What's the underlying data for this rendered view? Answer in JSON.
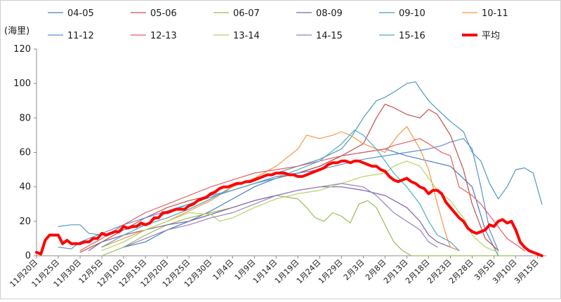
{
  "chart_data": {
    "type": "line",
    "ylabel": "(海里)",
    "ylim": [
      0,
      120
    ],
    "yticks": [
      0,
      20,
      40,
      60,
      80,
      100,
      120
    ],
    "x_tick_labels": [
      "11月20日",
      "11月25日",
      "11月30日",
      "12月5日",
      "12月10日",
      "12月15日",
      "12月20日",
      "12月25日",
      "12月30日",
      "1月4日",
      "1月9日",
      "1月14日",
      "1月19日",
      "1月24日",
      "1月29日",
      "2月3日",
      "2月8日",
      "2月13日",
      "2月18日",
      "2月23日",
      "2月28日",
      "3月5日",
      "3月10日",
      "3月15日"
    ],
    "x_tick_day_index": [
      0,
      5,
      10,
      15,
      20,
      25,
      30,
      35,
      40,
      45,
      50,
      55,
      60,
      65,
      70,
      75,
      80,
      85,
      90,
      95,
      100,
      105,
      110,
      115
    ],
    "x_unit": "days since 11月20日",
    "grid": false,
    "legend_position": "top",
    "series": [
      {
        "name": "04-05",
        "color": "#4a7ebb",
        "width": 1.2,
        "x": [
          20,
          25,
          30,
          35,
          40,
          45,
          50,
          55,
          60,
          65,
          70,
          75,
          80,
          85,
          90,
          95,
          100,
          103,
          106
        ],
        "y": [
          5,
          8,
          15,
          20,
          26,
          33,
          40,
          45,
          48,
          52,
          58,
          60,
          62,
          58,
          55,
          52,
          40,
          15,
          0
        ]
      },
      {
        "name": "05-06",
        "color": "#c0504d",
        "width": 1.2,
        "x": [
          10,
          15,
          20,
          25,
          30,
          35,
          40,
          45,
          50,
          55,
          60,
          65,
          70,
          75,
          78,
          80,
          82,
          85,
          88,
          90,
          92,
          95,
          98,
          100,
          103,
          106
        ],
        "y": [
          2,
          8,
          15,
          22,
          28,
          32,
          35,
          38,
          42,
          45,
          48,
          52,
          58,
          65,
          80,
          88,
          86,
          82,
          80,
          85,
          82,
          70,
          50,
          30,
          10,
          3
        ]
      },
      {
        "name": "06-07",
        "color": "#9bbb59",
        "width": 1.2,
        "x": [
          15,
          20,
          25,
          30,
          35,
          40,
          45,
          50,
          55,
          60,
          62,
          64,
          66,
          68,
          70,
          72,
          74,
          76,
          78,
          80,
          82,
          84,
          86,
          88,
          90,
          92,
          95,
          100,
          105,
          110
        ],
        "y": [
          0,
          5,
          12,
          18,
          22,
          25,
          28,
          32,
          35,
          33,
          28,
          22,
          20,
          25,
          23,
          19,
          30,
          32,
          28,
          18,
          8,
          3,
          0,
          0,
          0,
          0,
          0,
          0,
          0,
          0
        ]
      },
      {
        "name": "08-09",
        "color": "#8064a2",
        "width": 1.2,
        "x": [
          12,
          15,
          20,
          25,
          30,
          35,
          40,
          45,
          50,
          55,
          60,
          65,
          70,
          75,
          80,
          85,
          88,
          90,
          92,
          95,
          97
        ],
        "y": [
          3,
          8,
          12,
          15,
          18,
          20,
          24,
          28,
          32,
          35,
          38,
          40,
          40,
          38,
          35,
          28,
          20,
          12,
          8,
          5,
          3
        ]
      },
      {
        "name": "09-10",
        "color": "#4f9bb7",
        "width": 1.2,
        "x": [
          5,
          8,
          10,
          12,
          15,
          20,
          25,
          30,
          35,
          40,
          45,
          50,
          55,
          60,
          65,
          70,
          72,
          75,
          78,
          80,
          82,
          85,
          87,
          88,
          90,
          92,
          95,
          98,
          100,
          102,
          104,
          106,
          108,
          110,
          112,
          114,
          116
        ],
        "y": [
          17,
          18,
          18,
          13,
          12,
          15,
          18,
          22,
          27,
          33,
          40,
          45,
          48,
          52,
          56,
          62,
          68,
          80,
          90,
          92,
          95,
          100,
          101,
          97,
          90,
          85,
          78,
          72,
          60,
          55,
          42,
          33,
          40,
          50,
          51,
          48,
          30
        ]
      },
      {
        "name": "10-11",
        "color": "#f79646",
        "width": 1.2,
        "x": [
          15,
          20,
          25,
          30,
          35,
          40,
          45,
          50,
          55,
          60,
          62,
          65,
          68,
          70,
          72,
          75,
          78,
          80,
          83,
          85,
          88,
          90,
          92,
          94,
          95,
          97
        ],
        "y": [
          5,
          10,
          15,
          20,
          26,
          32,
          40,
          45,
          52,
          62,
          70,
          68,
          70,
          72,
          70,
          65,
          62,
          60,
          70,
          75,
          62,
          50,
          30,
          12,
          5,
          3
        ]
      },
      {
        "name": "11-12",
        "color": "#5b8fd4",
        "width": 1.2,
        "x": [
          5,
          8,
          10,
          12,
          15,
          20,
          25,
          30,
          35,
          40,
          45,
          50,
          55,
          60,
          65,
          70,
          75,
          80,
          85,
          90,
          93,
          95,
          98,
          100,
          102,
          104,
          106
        ],
        "y": [
          5,
          4,
          8,
          10,
          13,
          18,
          22,
          26,
          30,
          34,
          38,
          42,
          46,
          48,
          50,
          53,
          56,
          58,
          60,
          62,
          64,
          66,
          68,
          62,
          40,
          15,
          3
        ]
      },
      {
        "name": "12-13",
        "color": "#e06060",
        "width": 1.2,
        "x": [
          10,
          15,
          20,
          25,
          30,
          35,
          40,
          45,
          50,
          55,
          60,
          65,
          70,
          75,
          80,
          82,
          85,
          88,
          90,
          93,
          95,
          97,
          100,
          102,
          105,
          108,
          112
        ],
        "y": [
          3,
          10,
          18,
          25,
          30,
          35,
          40,
          44,
          48,
          50,
          52,
          55,
          58,
          60,
          62,
          64,
          66,
          68,
          65,
          60,
          58,
          40,
          35,
          30,
          20,
          10,
          3
        ]
      },
      {
        "name": "13-14",
        "color": "#b5d466",
        "width": 1.2,
        "x": [
          15,
          20,
          25,
          30,
          35,
          40,
          42,
          45,
          50,
          55,
          60,
          65,
          70,
          75,
          80,
          82,
          85,
          88,
          90,
          92,
          95,
          98,
          100,
          103,
          106
        ],
        "y": [
          3,
          8,
          15,
          20,
          25,
          24,
          20,
          22,
          28,
          33,
          36,
          38,
          42,
          46,
          48,
          52,
          55,
          52,
          45,
          38,
          32,
          22,
          12,
          5,
          2
        ]
      },
      {
        "name": "14-15",
        "color": "#9a7fc2",
        "width": 1.2,
        "x": [
          20,
          25,
          30,
          35,
          40,
          45,
          50,
          55,
          60,
          65,
          70,
          75,
          78,
          80,
          82,
          85,
          88,
          90,
          92
        ],
        "y": [
          5,
          10,
          15,
          18,
          22,
          25,
          30,
          35,
          38,
          40,
          42,
          40,
          35,
          30,
          25,
          20,
          15,
          8,
          5
        ]
      },
      {
        "name": "15-16",
        "color": "#4bacc6",
        "width": 1.2,
        "x": [
          15,
          20,
          25,
          30,
          35,
          40,
          45,
          50,
          55,
          60,
          65,
          70,
          73,
          75,
          78,
          80,
          82,
          85,
          88,
          90,
          92,
          95,
          97
        ],
        "y": [
          5,
          12,
          18,
          25,
          30,
          35,
          38,
          42,
          45,
          50,
          55,
          65,
          73,
          70,
          62,
          55,
          48,
          40,
          30,
          20,
          12,
          8,
          3
        ]
      },
      {
        "name": "平均",
        "color": "#ff0000",
        "width": 4,
        "x": [
          0,
          1,
          2,
          3,
          4,
          5,
          6,
          7,
          8,
          9,
          10,
          11,
          12,
          13,
          14,
          15,
          16,
          17,
          18,
          19,
          20,
          21,
          22,
          23,
          24,
          25,
          26,
          27,
          28,
          29,
          30,
          31,
          32,
          33,
          34,
          35,
          36,
          37,
          38,
          39,
          40,
          41,
          42,
          43,
          44,
          45,
          46,
          47,
          48,
          49,
          50,
          51,
          52,
          53,
          54,
          55,
          56,
          57,
          58,
          59,
          60,
          61,
          62,
          63,
          64,
          65,
          66,
          67,
          68,
          69,
          70,
          71,
          72,
          73,
          74,
          75,
          76,
          77,
          78,
          79,
          80,
          81,
          82,
          83,
          84,
          85,
          86,
          87,
          88,
          89,
          90,
          91,
          92,
          93,
          94,
          95,
          96,
          97,
          98,
          99,
          100,
          101,
          102,
          103,
          104,
          105,
          106,
          107,
          108,
          109,
          110,
          111,
          112,
          113,
          114,
          115,
          116
        ],
        "y": [
          2,
          1,
          9,
          12,
          12,
          12,
          7,
          9,
          7,
          7,
          7,
          8,
          8,
          10,
          10,
          13,
          12,
          13,
          14,
          14,
          17,
          16,
          17,
          17,
          19,
          18,
          19,
          22,
          22,
          25,
          25,
          26,
          27,
          27,
          27,
          29,
          30,
          32,
          33,
          34,
          36,
          37,
          39,
          40,
          40,
          41,
          42,
          42,
          43,
          43,
          44,
          45,
          46,
          47,
          47,
          48,
          48,
          48,
          47,
          47,
          46,
          46,
          47,
          48,
          49,
          50,
          51,
          53,
          54,
          54,
          55,
          55,
          54,
          55,
          55,
          54,
          53,
          52,
          52,
          50,
          49,
          46,
          44,
          43,
          44,
          45,
          43,
          42,
          40,
          39,
          36,
          38,
          38,
          36,
          31,
          28,
          25,
          22,
          20,
          16,
          14,
          13,
          14,
          15,
          18,
          17,
          20,
          21,
          19,
          20,
          15,
          8,
          5,
          3,
          2,
          1,
          0
        ]
      }
    ]
  }
}
